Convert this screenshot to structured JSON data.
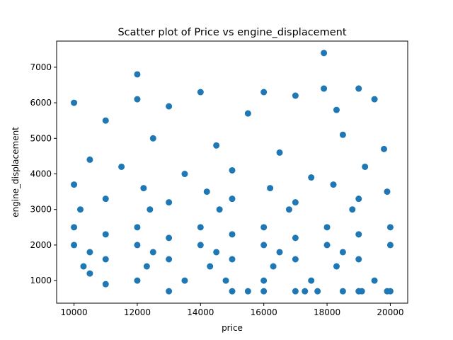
{
  "chart_data": {
    "type": "scatter",
    "title": "Scatter plot of Price vs engine_displacement",
    "xlabel": "price",
    "ylabel": "engine_displacement",
    "xlim": [
      9450,
      20550
    ],
    "ylim": [
      365,
      7735
    ],
    "xticks": [
      10000,
      12000,
      14000,
      16000,
      18000,
      20000
    ],
    "yticks": [
      1000,
      2000,
      3000,
      4000,
      5000,
      6000,
      7000
    ],
    "grid": false,
    "legend": "none",
    "marker_color": "#1f77b4",
    "series": [
      {
        "points": [
          [
            17900,
            7400
          ],
          [
            12000,
            6800
          ],
          [
            18300,
            5800
          ],
          [
            17900,
            6400
          ],
          [
            19000,
            6400
          ],
          [
            14000,
            6300
          ],
          [
            16000,
            6300
          ],
          [
            10000,
            6000
          ],
          [
            12000,
            6100
          ],
          [
            13000,
            5900
          ],
          [
            15500,
            5700
          ],
          [
            17000,
            6200
          ],
          [
            19500,
            6100
          ],
          [
            11000,
            5500
          ],
          [
            12500,
            5000
          ],
          [
            14500,
            4800
          ],
          [
            16500,
            4600
          ],
          [
            18500,
            5100
          ],
          [
            19800,
            4700
          ],
          [
            10500,
            4400
          ],
          [
            11500,
            4200
          ],
          [
            13500,
            4000
          ],
          [
            15000,
            4100
          ],
          [
            17500,
            3900
          ],
          [
            19200,
            4200
          ],
          [
            10000,
            3700
          ],
          [
            12200,
            3600
          ],
          [
            14200,
            3500
          ],
          [
            16200,
            3600
          ],
          [
            18200,
            3700
          ],
          [
            19900,
            3500
          ],
          [
            11000,
            3300
          ],
          [
            13000,
            3200
          ],
          [
            15000,
            3300
          ],
          [
            17000,
            3200
          ],
          [
            19000,
            3300
          ],
          [
            10200,
            3000
          ],
          [
            12400,
            3000
          ],
          [
            14600,
            3000
          ],
          [
            16800,
            3000
          ],
          [
            18800,
            3000
          ],
          [
            10000,
            2500
          ],
          [
            12000,
            2500
          ],
          [
            14000,
            2500
          ],
          [
            16000,
            2500
          ],
          [
            18000,
            2500
          ],
          [
            20000,
            2500
          ],
          [
            11000,
            2300
          ],
          [
            13000,
            2200
          ],
          [
            15000,
            2300
          ],
          [
            17000,
            2200
          ],
          [
            19000,
            2300
          ],
          [
            10000,
            2000
          ],
          [
            12000,
            2000
          ],
          [
            14000,
            2000
          ],
          [
            16000,
            2000
          ],
          [
            18000,
            2000
          ],
          [
            20000,
            2000
          ],
          [
            10500,
            1800
          ],
          [
            12500,
            1800
          ],
          [
            14500,
            1800
          ],
          [
            16500,
            1800
          ],
          [
            18500,
            1800
          ],
          [
            11000,
            1600
          ],
          [
            13000,
            1600
          ],
          [
            15000,
            1600
          ],
          [
            17000,
            1600
          ],
          [
            19000,
            1600
          ],
          [
            10300,
            1400
          ],
          [
            12300,
            1400
          ],
          [
            14300,
            1400
          ],
          [
            16300,
            1400
          ],
          [
            18300,
            1400
          ],
          [
            10500,
            1200
          ],
          [
            12000,
            1000
          ],
          [
            13500,
            1000
          ],
          [
            14800,
            1000
          ],
          [
            16000,
            1000
          ],
          [
            17500,
            1000
          ],
          [
            19500,
            1000
          ],
          [
            11000,
            900
          ],
          [
            13000,
            700
          ],
          [
            15000,
            700
          ],
          [
            15500,
            700
          ],
          [
            16000,
            700
          ],
          [
            17000,
            700
          ],
          [
            17300,
            700
          ],
          [
            17700,
            700
          ],
          [
            18500,
            700
          ],
          [
            19000,
            700
          ],
          [
            19100,
            700
          ],
          [
            19900,
            700
          ],
          [
            20000,
            700
          ]
        ]
      }
    ]
  }
}
